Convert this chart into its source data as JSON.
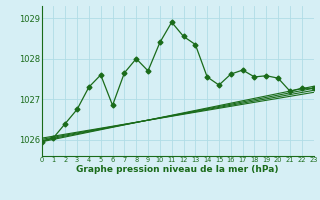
{
  "title": "Graphe pression niveau de la mer (hPa)",
  "background_color": "#d6eff5",
  "grid_color": "#b0dce6",
  "line_color": "#1a6b1a",
  "xlim": [
    0,
    23
  ],
  "ylim": [
    1025.6,
    1029.3
  ],
  "yticks": [
    1026,
    1027,
    1028,
    1029
  ],
  "xticks": [
    0,
    1,
    2,
    3,
    4,
    5,
    6,
    7,
    8,
    9,
    10,
    11,
    12,
    13,
    14,
    15,
    16,
    17,
    18,
    19,
    20,
    21,
    22,
    23
  ],
  "main_x": [
    0,
    1,
    2,
    3,
    4,
    5,
    6,
    7,
    8,
    9,
    10,
    11,
    12,
    13,
    14,
    15,
    16,
    17,
    18,
    19,
    20,
    21,
    22,
    23
  ],
  "main_y": [
    1025.95,
    1026.05,
    1026.4,
    1026.75,
    1027.3,
    1027.6,
    1026.85,
    1027.65,
    1028.0,
    1027.7,
    1028.4,
    1028.9,
    1028.55,
    1028.35,
    1027.55,
    1027.35,
    1027.62,
    1027.72,
    1027.55,
    1027.58,
    1027.52,
    1027.2,
    1027.27,
    1027.27
  ],
  "trend_lines": [
    {
      "x": [
        0,
        23
      ],
      "y": [
        1025.95,
        1027.32
      ]
    },
    {
      "x": [
        0,
        23
      ],
      "y": [
        1025.98,
        1027.27
      ]
    },
    {
      "x": [
        0,
        23
      ],
      "y": [
        1026.01,
        1027.22
      ]
    },
    {
      "x": [
        0,
        23
      ],
      "y": [
        1026.04,
        1027.17
      ]
    }
  ]
}
